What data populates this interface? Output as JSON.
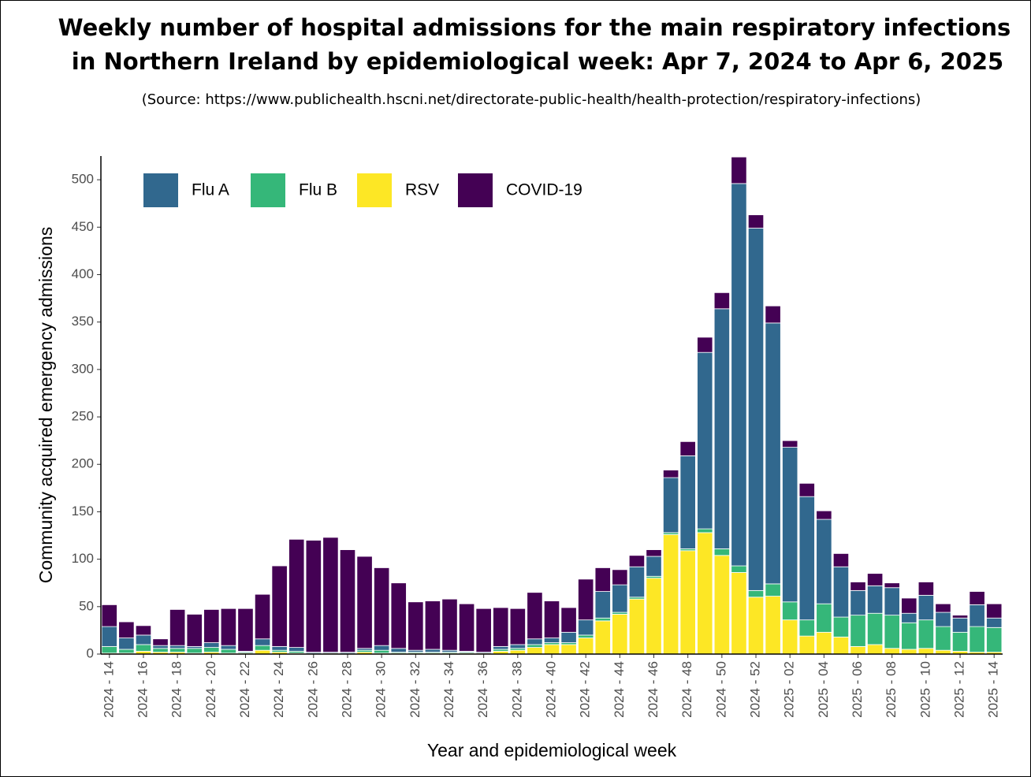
{
  "chart_data": {
    "type": "stacked_bar",
    "title": [
      "Weekly number of hospital admissions for the main respiratory infections",
      "in Northern Ireland by epidemiological week: Apr 7, 2024 to Apr 6, 2025"
    ],
    "subtitle": "(Source: https://www.publichealth.hscni.net/directorate-public-health/health-protection/respiratory-infections)",
    "x_label": "Year and epidemiological week",
    "y_label": "Community acquired emergency admissions",
    "categories": [
      "2024 - 14",
      null,
      "2024 - 16",
      null,
      "2024 - 18",
      null,
      "2024 - 20",
      null,
      "2024 - 22",
      null,
      "2024 - 24",
      null,
      "2024 - 26",
      null,
      "2024 - 28",
      null,
      "2024 - 30",
      null,
      "2024 - 32",
      null,
      "2024 - 34",
      null,
      "2024 - 36",
      null,
      "2024 - 38",
      null,
      "2024 - 40",
      null,
      "2024 - 42",
      null,
      "2024 - 44",
      null,
      "2024 - 46",
      null,
      "2024 - 48",
      null,
      "2024 - 50",
      null,
      "2024 - 52",
      null,
      "2025 - 02",
      null,
      "2025 - 04",
      null,
      "2025 - 06",
      null,
      "2025 - 08",
      null,
      "2025 - 10",
      null,
      "2025 - 12",
      null,
      "2025 - 14"
    ],
    "series": [
      {
        "name": "Flu A",
        "color": "#31688e",
        "values": [
          21,
          12,
          10,
          3,
          3,
          2,
          5,
          4,
          1,
          7,
          4,
          4,
          1,
          1,
          1,
          2,
          5,
          4,
          2,
          3,
          2,
          1,
          1,
          3,
          4,
          6,
          5,
          11,
          16,
          28,
          29,
          32,
          21,
          58,
          98,
          186,
          253,
          403,
          382,
          275,
          163,
          130,
          89,
          53,
          26,
          29,
          29,
          10,
          26,
          15,
          15,
          23,
          10
        ]
      },
      {
        "name": "Flu B",
        "color": "#35b779",
        "values": [
          7,
          4,
          7,
          4,
          4,
          5,
          5,
          4,
          1,
          5,
          2,
          2,
          1,
          0,
          1,
          2,
          3,
          1,
          1,
          1,
          1,
          1,
          0,
          2,
          2,
          3,
          2,
          2,
          3,
          3,
          2,
          2,
          2,
          2,
          2,
          4,
          7,
          7,
          7,
          13,
          19,
          17,
          30,
          21,
          33,
          33,
          35,
          28,
          30,
          25,
          20,
          27,
          26
        ]
      },
      {
        "name": "RSV",
        "color": "#fde725",
        "values": [
          1,
          1,
          3,
          2,
          2,
          1,
          2,
          1,
          1,
          4,
          2,
          1,
          0,
          1,
          0,
          2,
          1,
          1,
          1,
          1,
          1,
          1,
          1,
          3,
          4,
          7,
          10,
          10,
          17,
          35,
          42,
          58,
          80,
          126,
          109,
          128,
          104,
          86,
          60,
          61,
          36,
          19,
          23,
          18,
          8,
          10,
          6,
          5,
          6,
          4,
          3,
          2,
          2
        ]
      },
      {
        "name": "COVID-19",
        "color": "#440154",
        "values": [
          23,
          17,
          10,
          7,
          38,
          34,
          35,
          39,
          45,
          47,
          85,
          114,
          118,
          121,
          108,
          97,
          82,
          69,
          51,
          51,
          54,
          50,
          46,
          41,
          38,
          49,
          39,
          26,
          43,
          25,
          16,
          12,
          7,
          8,
          15,
          16,
          17,
          28,
          14,
          18,
          7,
          14,
          9,
          14,
          9,
          13,
          5,
          16,
          14,
          9,
          3,
          14,
          15
        ]
      }
    ],
    "ylim": [
      0,
      525
    ],
    "yticks": [
      0,
      50,
      100,
      150,
      200,
      250,
      300,
      350,
      400,
      450,
      500
    ],
    "legend": "top-left",
    "grid": false
  }
}
